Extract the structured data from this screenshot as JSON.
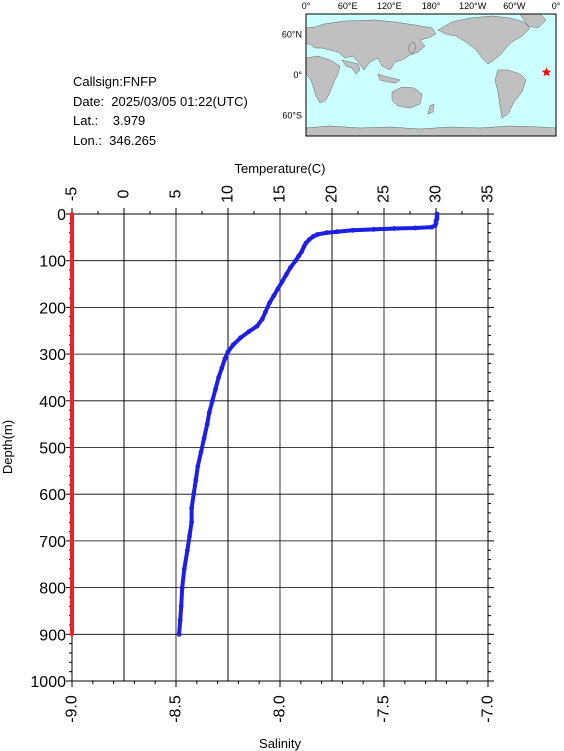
{
  "station": {
    "callsign_line": "Callsign:FNFP",
    "date_line": "Date:  2025/03/05 01:22(UTC)",
    "lat_line": "Lat.:    3.979",
    "lon_line": "Lon.:  346.265"
  },
  "map": {
    "top_lon_labels": [
      "0°",
      "60°E",
      "120°E",
      "180°",
      "120°W",
      "60°W",
      "0°"
    ],
    "left_lat_labels": [
      "60°N",
      "0°",
      "60°S"
    ],
    "ocean_color": "#ccffff",
    "land_color": "#c0c0c0",
    "marker_color": "#ff0000",
    "marker_lon": 346.265,
    "marker_lat": 3.979
  },
  "chart_data": {
    "type": "line",
    "top_axis_label": "Temperature(C)",
    "bottom_axis_label": "Salinity",
    "left_axis_label": "Depth(m)",
    "temperature_ticks": [
      "-5",
      "0",
      "5",
      "10",
      "15",
      "20",
      "25",
      "30",
      "35"
    ],
    "temperature_range": [
      -5,
      35
    ],
    "salinity_ticks": [
      "-9.0",
      "-8.5",
      "-8.0",
      "-7.5",
      "-7.0"
    ],
    "salinity_range": [
      -9.0,
      -7.0
    ],
    "depth_ticks": [
      "0",
      "100",
      "200",
      "300",
      "400",
      "500",
      "600",
      "700",
      "800",
      "900",
      "1000"
    ],
    "depth_range": [
      0,
      1000
    ],
    "grid": true,
    "series": [
      {
        "color": "#1e1ee6",
        "axis": "temperature",
        "points": [
          [
            30.1,
            0
          ],
          [
            30.1,
            5
          ],
          [
            30.1,
            10
          ],
          [
            30.0,
            15
          ],
          [
            30.0,
            20
          ],
          [
            29.9,
            25
          ],
          [
            29.6,
            28
          ],
          [
            28.0,
            30
          ],
          [
            26.0,
            31
          ],
          [
            24.0,
            33
          ],
          [
            22.0,
            35
          ],
          [
            20.5,
            38
          ],
          [
            19.5,
            40
          ],
          [
            18.6,
            44
          ],
          [
            18.2,
            48
          ],
          [
            17.8,
            55
          ],
          [
            17.5,
            62
          ],
          [
            17.3,
            70
          ],
          [
            17.1,
            80
          ],
          [
            16.8,
            90
          ],
          [
            16.5,
            100
          ],
          [
            16.0,
            115
          ],
          [
            15.6,
            130
          ],
          [
            15.2,
            145
          ],
          [
            14.8,
            160
          ],
          [
            14.4,
            175
          ],
          [
            14.0,
            190
          ],
          [
            13.6,
            210
          ],
          [
            13.3,
            225
          ],
          [
            12.8,
            240
          ],
          [
            12.0,
            252
          ],
          [
            11.2,
            265
          ],
          [
            10.5,
            280
          ],
          [
            10.0,
            295
          ],
          [
            9.7,
            310
          ],
          [
            9.4,
            330
          ],
          [
            9.1,
            350
          ],
          [
            8.8,
            375
          ],
          [
            8.5,
            400
          ],
          [
            8.2,
            425
          ],
          [
            8.0,
            450
          ],
          [
            7.7,
            480
          ],
          [
            7.4,
            510
          ],
          [
            7.1,
            540
          ],
          [
            6.9,
            570
          ],
          [
            6.7,
            600
          ],
          [
            6.5,
            630
          ],
          [
            6.5,
            660
          ],
          [
            6.3,
            690
          ],
          [
            6.1,
            720
          ],
          [
            5.8,
            760
          ],
          [
            5.6,
            800
          ],
          [
            5.5,
            840
          ],
          [
            5.4,
            870
          ],
          [
            5.3,
            900
          ]
        ]
      },
      {
        "color": "#ee2222",
        "axis": "salinity",
        "points": [
          [
            -9.0,
            0
          ],
          [
            -9.0,
            900
          ]
        ]
      }
    ]
  }
}
